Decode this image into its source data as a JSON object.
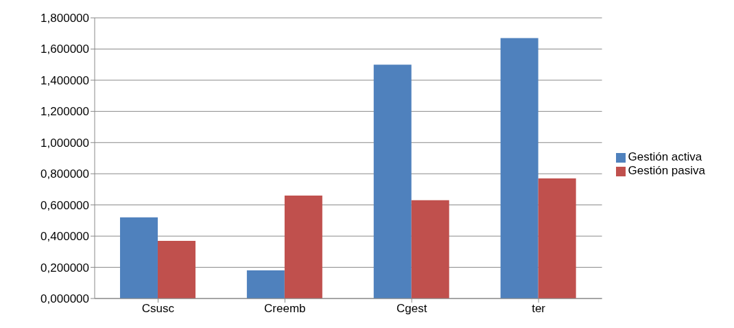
{
  "chart_data": {
    "type": "bar",
    "categories": [
      "Csusc",
      "Creemb",
      "Cgest",
      "ter"
    ],
    "series": [
      {
        "name": "Gestión activa",
        "color": "#4f81bd",
        "values": [
          0.52,
          0.18,
          1.5,
          1.67
        ]
      },
      {
        "name": "Gestión pasiva",
        "color": "#c0504d",
        "values": [
          0.37,
          0.66,
          0.63,
          0.77
        ]
      }
    ],
    "ylim": [
      0,
      1.8
    ],
    "yticks": [
      {
        "value": 0,
        "label": "0,000000"
      },
      {
        "value": 0.2,
        "label": "0,200000"
      },
      {
        "value": 0.4,
        "label": "0,400000"
      },
      {
        "value": 0.6,
        "label": "0,600000"
      },
      {
        "value": 0.8,
        "label": "0,800000"
      },
      {
        "value": 1,
        "label": "1,000000"
      },
      {
        "value": 1.2,
        "label": "1,200000"
      },
      {
        "value": 1.4,
        "label": "1,400000"
      },
      {
        "value": 1.6,
        "label": "1,600000"
      },
      {
        "value": 1.8,
        "label": "1,800000"
      }
    ],
    "grid": "y",
    "legend": "right"
  }
}
